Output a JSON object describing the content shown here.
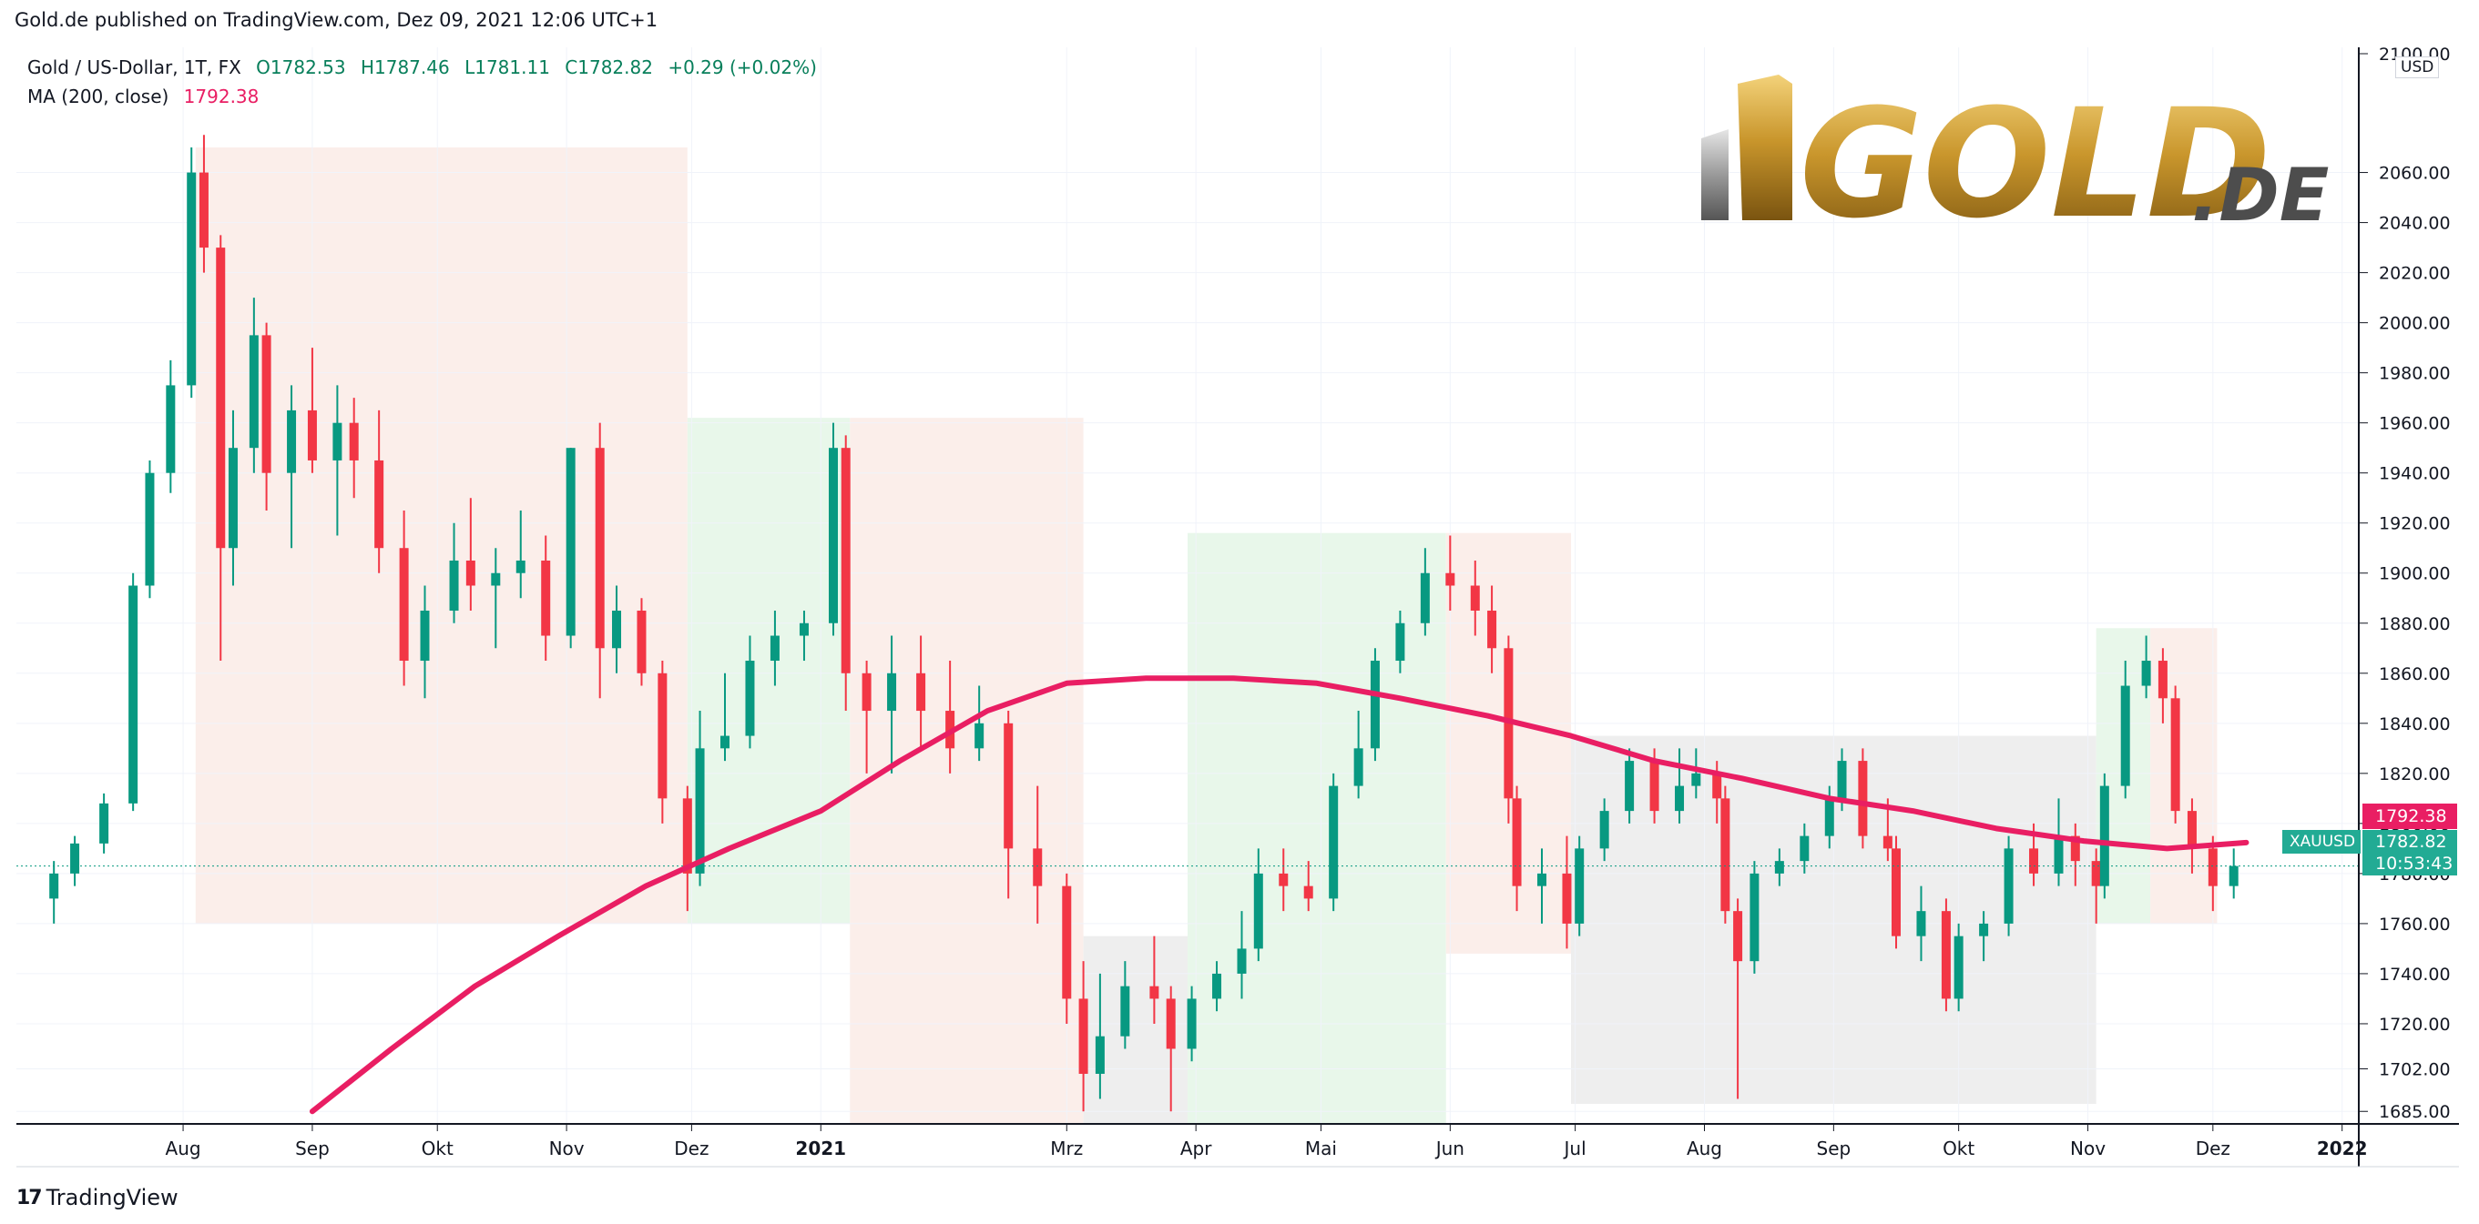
{
  "header": {
    "published_text": "Gold.de published on TradingView.com, Dez 09, 2021 12:06 UTC+1"
  },
  "legend": {
    "symbol": "Gold  / US-Dollar, 1T, FX",
    "open": "O1782.53",
    "high": "H1787.46",
    "low": "L1781.11",
    "close": "C1782.82",
    "change": "+0.29 (+0.02%)",
    "ma_label": "MA (200, close)",
    "ma_value": "1792.38"
  },
  "price_axis": {
    "currency": "USD",
    "ticks": [
      "2100.00",
      "2060.00",
      "2040.00",
      "2020.00",
      "2000.00",
      "1980.00",
      "1960.00",
      "1940.00",
      "1920.00",
      "1900.00",
      "1880.00",
      "1860.00",
      "1840.00",
      "1820.00",
      "1800.00",
      "1780.00",
      "1760.00",
      "1740.00",
      "1720.00",
      "1702.00",
      "1685.00"
    ]
  },
  "tags": {
    "ma_value": "1792.38",
    "symbol": "XAUUSD",
    "price": "1782.82",
    "countdown": "10:53:43"
  },
  "logo": {
    "text": "GOLD",
    "suffix": ".DE"
  },
  "footer": {
    "brand": "TradingView",
    "logo_mark": "17"
  },
  "colors": {
    "up": "#089981",
    "down": "#f23645",
    "ma": "#e91e63",
    "green_zone": "#e8f7ea",
    "red_zone": "#fbeeea",
    "grey_zone": "#eeeeee"
  },
  "chart_data": {
    "type": "candlestick",
    "title": "Gold  / US-Dollar, 1T, FX",
    "x_ticks": [
      "Aug",
      "Sep",
      "Okt",
      "Nov",
      "Dez",
      "2021",
      "Mrz",
      "Apr",
      "Mai",
      "Jun",
      "Jul",
      "Aug",
      "Sep",
      "Okt",
      "Nov",
      "Dez",
      "2022"
    ],
    "ylim": [
      1680,
      2110
    ],
    "grid": true,
    "series": [
      {
        "name": "Gold / US-Dollar",
        "kind": "candles",
        "values": [
          [
            "2020-07-01",
            1770,
            1785,
            1760,
            1780
          ],
          [
            "2020-07-06",
            1780,
            1795,
            1775,
            1792
          ],
          [
            "2020-07-13",
            1792,
            1812,
            1788,
            1808
          ],
          [
            "2020-07-20",
            1808,
            1900,
            1805,
            1895
          ],
          [
            "2020-07-24",
            1895,
            1945,
            1890,
            1940
          ],
          [
            "2020-07-29",
            1940,
            1985,
            1932,
            1975
          ],
          [
            "2020-08-03",
            1975,
            2070,
            1970,
            2060
          ],
          [
            "2020-08-06",
            2060,
            2075,
            2020,
            2030
          ],
          [
            "2020-08-10",
            2030,
            2035,
            1865,
            1910
          ],
          [
            "2020-08-13",
            1910,
            1965,
            1895,
            1950
          ],
          [
            "2020-08-18",
            1950,
            2010,
            1940,
            1995
          ],
          [
            "2020-08-21",
            1995,
            2000,
            1925,
            1940
          ],
          [
            "2020-08-27",
            1940,
            1975,
            1910,
            1965
          ],
          [
            "2020-09-01",
            1965,
            1990,
            1940,
            1945
          ],
          [
            "2020-09-07",
            1945,
            1975,
            1915,
            1960
          ],
          [
            "2020-09-11",
            1960,
            1970,
            1930,
            1945
          ],
          [
            "2020-09-17",
            1945,
            1965,
            1900,
            1910
          ],
          [
            "2020-09-23",
            1910,
            1925,
            1855,
            1865
          ],
          [
            "2020-09-28",
            1865,
            1895,
            1850,
            1885
          ],
          [
            "2020-10-05",
            1885,
            1920,
            1880,
            1905
          ],
          [
            "2020-10-09",
            1905,
            1930,
            1885,
            1895
          ],
          [
            "2020-10-15",
            1895,
            1910,
            1870,
            1900
          ],
          [
            "2020-10-21",
            1900,
            1925,
            1890,
            1905
          ],
          [
            "2020-10-27",
            1905,
            1915,
            1865,
            1875
          ],
          [
            "2020-11-02",
            1875,
            1950,
            1870,
            1950
          ],
          [
            "2020-11-09",
            1950,
            1960,
            1850,
            1870
          ],
          [
            "2020-11-13",
            1870,
            1895,
            1860,
            1885
          ],
          [
            "2020-11-19",
            1885,
            1890,
            1855,
            1860
          ],
          [
            "2020-11-24",
            1860,
            1865,
            1800,
            1810
          ],
          [
            "2020-11-30",
            1810,
            1815,
            1765,
            1780
          ],
          [
            "2020-12-03",
            1780,
            1845,
            1775,
            1830
          ],
          [
            "2020-12-09",
            1830,
            1860,
            1825,
            1835
          ],
          [
            "2020-12-15",
            1835,
            1875,
            1830,
            1865
          ],
          [
            "2020-12-21",
            1865,
            1885,
            1855,
            1875
          ],
          [
            "2020-12-28",
            1875,
            1885,
            1865,
            1880
          ],
          [
            "2021-01-04",
            1880,
            1960,
            1875,
            1950
          ],
          [
            "2021-01-07",
            1950,
            1955,
            1845,
            1860
          ],
          [
            "2021-01-12",
            1860,
            1865,
            1820,
            1845
          ],
          [
            "2021-01-18",
            1845,
            1875,
            1820,
            1860
          ],
          [
            "2021-01-25",
            1860,
            1875,
            1830,
            1845
          ],
          [
            "2021-02-01",
            1845,
            1865,
            1820,
            1830
          ],
          [
            "2021-02-08",
            1830,
            1855,
            1825,
            1840
          ],
          [
            "2021-02-15",
            1840,
            1845,
            1770,
            1790
          ],
          [
            "2021-02-22",
            1790,
            1815,
            1760,
            1775
          ],
          [
            "2021-03-01",
            1775,
            1780,
            1720,
            1730
          ],
          [
            "2021-03-05",
            1730,
            1745,
            1685,
            1700
          ],
          [
            "2021-03-09",
            1700,
            1740,
            1690,
            1715
          ],
          [
            "2021-03-15",
            1715,
            1745,
            1710,
            1735
          ],
          [
            "2021-03-22",
            1735,
            1755,
            1720,
            1730
          ],
          [
            "2021-03-26",
            1730,
            1735,
            1685,
            1710
          ],
          [
            "2021-03-31",
            1710,
            1735,
            1705,
            1730
          ],
          [
            "2021-04-06",
            1730,
            1745,
            1725,
            1740
          ],
          [
            "2021-04-12",
            1740,
            1765,
            1730,
            1750
          ],
          [
            "2021-04-16",
            1750,
            1790,
            1745,
            1780
          ],
          [
            "2021-04-22",
            1780,
            1790,
            1765,
            1775
          ],
          [
            "2021-04-28",
            1775,
            1785,
            1765,
            1770
          ],
          [
            "2021-05-04",
            1770,
            1820,
            1765,
            1815
          ],
          [
            "2021-05-10",
            1815,
            1845,
            1810,
            1830
          ],
          [
            "2021-05-14",
            1830,
            1870,
            1825,
            1865
          ],
          [
            "2021-05-20",
            1865,
            1885,
            1860,
            1880
          ],
          [
            "2021-05-26",
            1880,
            1910,
            1875,
            1900
          ],
          [
            "2021-06-01",
            1900,
            1915,
            1885,
            1895
          ],
          [
            "2021-06-07",
            1895,
            1905,
            1875,
            1885
          ],
          [
            "2021-06-11",
            1885,
            1895,
            1860,
            1870
          ],
          [
            "2021-06-15",
            1870,
            1875,
            1800,
            1810
          ],
          [
            "2021-06-17",
            1810,
            1815,
            1765,
            1775
          ],
          [
            "2021-06-23",
            1775,
            1790,
            1760,
            1780
          ],
          [
            "2021-06-29",
            1780,
            1795,
            1750,
            1760
          ],
          [
            "2021-07-02",
            1760,
            1795,
            1755,
            1790
          ],
          [
            "2021-07-08",
            1790,
            1810,
            1785,
            1805
          ],
          [
            "2021-07-14",
            1805,
            1830,
            1800,
            1825
          ],
          [
            "2021-07-20",
            1825,
            1830,
            1800,
            1805
          ],
          [
            "2021-07-26",
            1805,
            1830,
            1800,
            1815
          ],
          [
            "2021-07-30",
            1815,
            1830,
            1810,
            1820
          ],
          [
            "2021-08-04",
            1820,
            1825,
            1800,
            1810
          ],
          [
            "2021-08-06",
            1810,
            1815,
            1760,
            1765
          ],
          [
            "2021-08-09",
            1765,
            1770,
            1690,
            1745
          ],
          [
            "2021-08-13",
            1745,
            1785,
            1740,
            1780
          ],
          [
            "2021-08-19",
            1780,
            1790,
            1775,
            1785
          ],
          [
            "2021-08-25",
            1785,
            1800,
            1780,
            1795
          ],
          [
            "2021-08-31",
            1795,
            1815,
            1790,
            1810
          ],
          [
            "2021-09-03",
            1810,
            1830,
            1805,
            1825
          ],
          [
            "2021-09-08",
            1825,
            1830,
            1790,
            1795
          ],
          [
            "2021-09-14",
            1795,
            1810,
            1785,
            1790
          ],
          [
            "2021-09-16",
            1790,
            1795,
            1750,
            1755
          ],
          [
            "2021-09-22",
            1755,
            1775,
            1745,
            1765
          ],
          [
            "2021-09-28",
            1765,
            1770,
            1725,
            1730
          ],
          [
            "2021-10-01",
            1730,
            1760,
            1725,
            1755
          ],
          [
            "2021-10-07",
            1755,
            1765,
            1745,
            1760
          ],
          [
            "2021-10-13",
            1760,
            1795,
            1755,
            1790
          ],
          [
            "2021-10-19",
            1790,
            1800,
            1775,
            1780
          ],
          [
            "2021-10-25",
            1780,
            1810,
            1775,
            1795
          ],
          [
            "2021-10-29",
            1795,
            1800,
            1775,
            1785
          ],
          [
            "2021-11-03",
            1785,
            1790,
            1760,
            1775
          ],
          [
            "2021-11-05",
            1775,
            1820,
            1770,
            1815
          ],
          [
            "2021-11-10",
            1815,
            1865,
            1810,
            1855
          ],
          [
            "2021-11-15",
            1855,
            1875,
            1850,
            1865
          ],
          [
            "2021-11-19",
            1865,
            1870,
            1840,
            1850
          ],
          [
            "2021-11-22",
            1850,
            1855,
            1800,
            1805
          ],
          [
            "2021-11-26",
            1805,
            1810,
            1780,
            1790
          ],
          [
            "2021-12-01",
            1790,
            1795,
            1765,
            1775
          ],
          [
            "2021-12-06",
            1775,
            1790,
            1770,
            1783
          ]
        ]
      },
      {
        "name": "MA (200, close)",
        "kind": "line",
        "values": [
          [
            "2020-09-01",
            1685
          ],
          [
            "2020-09-20",
            1710
          ],
          [
            "2020-10-10",
            1735
          ],
          [
            "2020-10-30",
            1755
          ],
          [
            "2020-11-20",
            1775
          ],
          [
            "2020-12-10",
            1790
          ],
          [
            "2021-01-01",
            1805
          ],
          [
            "2021-01-20",
            1825
          ],
          [
            "2021-02-10",
            1845
          ],
          [
            "2021-03-01",
            1856
          ],
          [
            "2021-03-20",
            1858
          ],
          [
            "2021-04-10",
            1858
          ],
          [
            "2021-04-30",
            1856
          ],
          [
            "2021-05-20",
            1850
          ],
          [
            "2021-06-10",
            1843
          ],
          [
            "2021-06-30",
            1835
          ],
          [
            "2021-07-20",
            1825
          ],
          [
            "2021-08-10",
            1818
          ],
          [
            "2021-08-31",
            1810
          ],
          [
            "2021-09-20",
            1805
          ],
          [
            "2021-10-10",
            1798
          ],
          [
            "2021-10-31",
            1793
          ],
          [
            "2021-11-20",
            1790
          ],
          [
            "2021-12-09",
            1792.38
          ]
        ]
      }
    ]
  }
}
